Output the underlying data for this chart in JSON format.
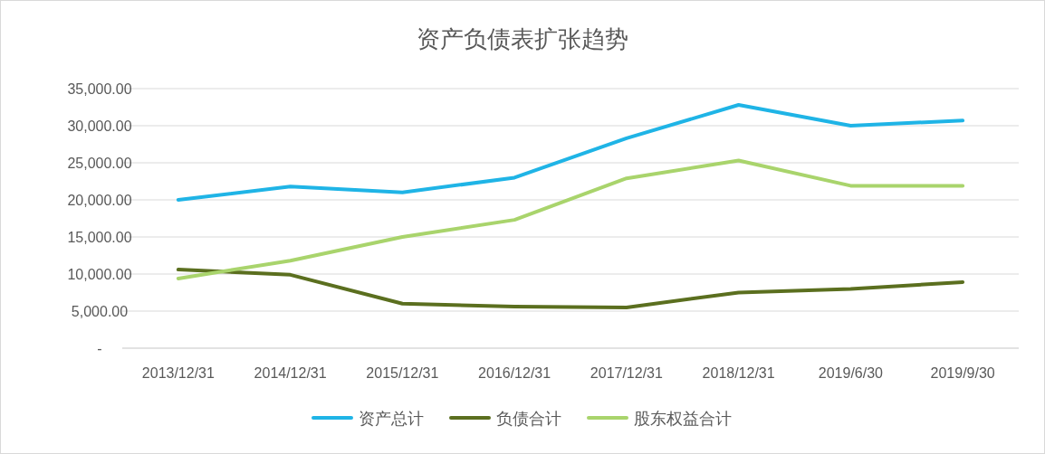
{
  "chart_data": {
    "type": "line",
    "title": "资产负债表扩张趋势",
    "categories": [
      "2013/12/31",
      "2014/12/31",
      "2015/12/31",
      "2016/12/31",
      "2017/12/31",
      "2018/12/31",
      "2019/6/30",
      "2019/9/30"
    ],
    "series": [
      {
        "name": "资产总计",
        "color": "#1fb4e6",
        "values": [
          20000,
          21800,
          21000,
          23000,
          28300,
          32800,
          30000,
          30700
        ]
      },
      {
        "name": "负债合计",
        "color": "#5b6f1f",
        "values": [
          10600,
          9900,
          6000,
          5600,
          5500,
          7500,
          8000,
          8900
        ]
      },
      {
        "name": "股东权益合计",
        "color": "#a9d46c",
        "values": [
          9400,
          11800,
          15000,
          17300,
          22900,
          25300,
          21900,
          21900
        ]
      }
    ],
    "ylim": [
      0,
      35000
    ],
    "yticks": [
      {
        "value": 0,
        "label": "-"
      },
      {
        "value": 5000,
        "label": "5,000.00"
      },
      {
        "value": 10000,
        "label": "10,000.00"
      },
      {
        "value": 15000,
        "label": "15,000.00"
      },
      {
        "value": 20000,
        "label": "20,000.00"
      },
      {
        "value": 25000,
        "label": "25,000.00"
      },
      {
        "value": 30000,
        "label": "30,000.00"
      },
      {
        "value": 35000,
        "label": "35,000.00"
      }
    ],
    "grid": "y",
    "legend": "bottom",
    "marker": "none",
    "line_style": "solid"
  }
}
